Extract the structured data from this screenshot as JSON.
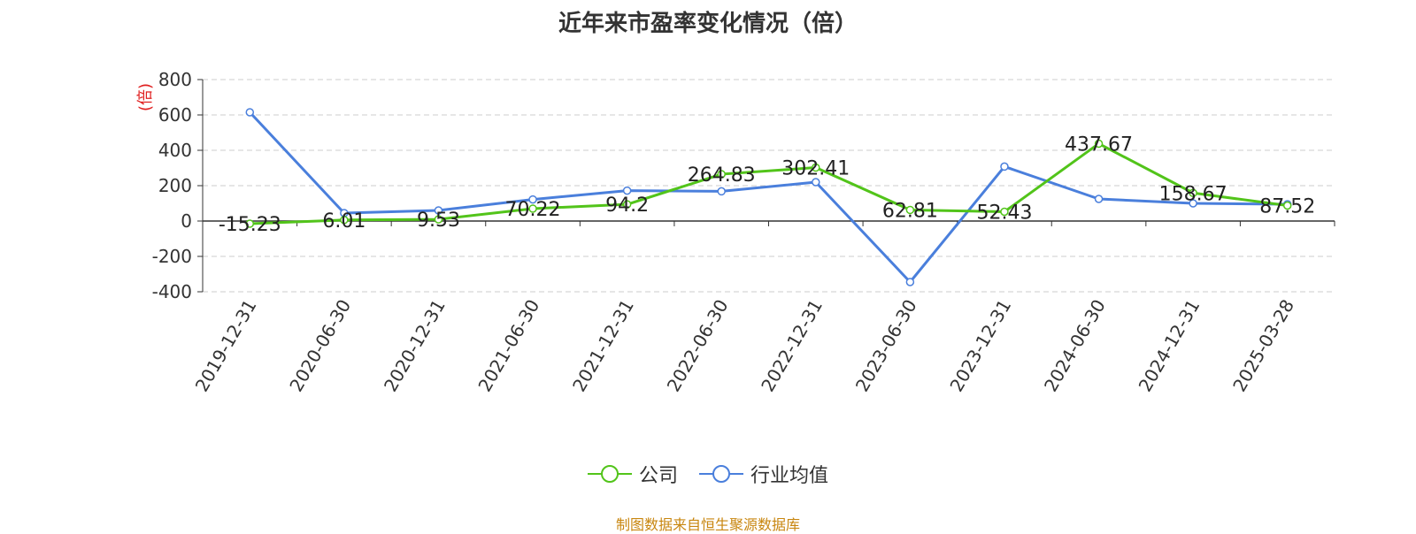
{
  "chart_data": {
    "type": "line",
    "title": "近年来市盈率变化情况（倍）",
    "ylabel": "(倍)",
    "ylim": [
      -400,
      800
    ],
    "yticks": [
      -400,
      -200,
      0,
      200,
      400,
      600,
      800
    ],
    "categories": [
      "2019-12-31",
      "2020-06-30",
      "2020-12-31",
      "2021-06-30",
      "2021-12-31",
      "2022-06-30",
      "2022-12-31",
      "2023-06-30",
      "2023-12-31",
      "2024-06-30",
      "2024-12-31",
      "2025-03-28"
    ],
    "series": [
      {
        "name": "公司",
        "color": "#52c41a",
        "values": [
          -15.23,
          6.01,
          9.53,
          70.22,
          94.2,
          264.83,
          302.41,
          62.81,
          52.43,
          437.67,
          158.67,
          87.52
        ],
        "labels": [
          "-15.23",
          "6.01",
          "9.53",
          "70.22",
          "94.2",
          "264.83",
          "302.41",
          "62.81",
          "52.43",
          "437.67",
          "158.67",
          "87.52"
        ]
      },
      {
        "name": "行业均值",
        "color": "#4a7fdc",
        "values": [
          615,
          45,
          60,
          122,
          172,
          168,
          220,
          -345,
          308,
          125,
          100,
          95
        ]
      }
    ],
    "grid": true,
    "legend_position": "bottom"
  },
  "source_text": "制图数据来自恒生聚源数据库"
}
